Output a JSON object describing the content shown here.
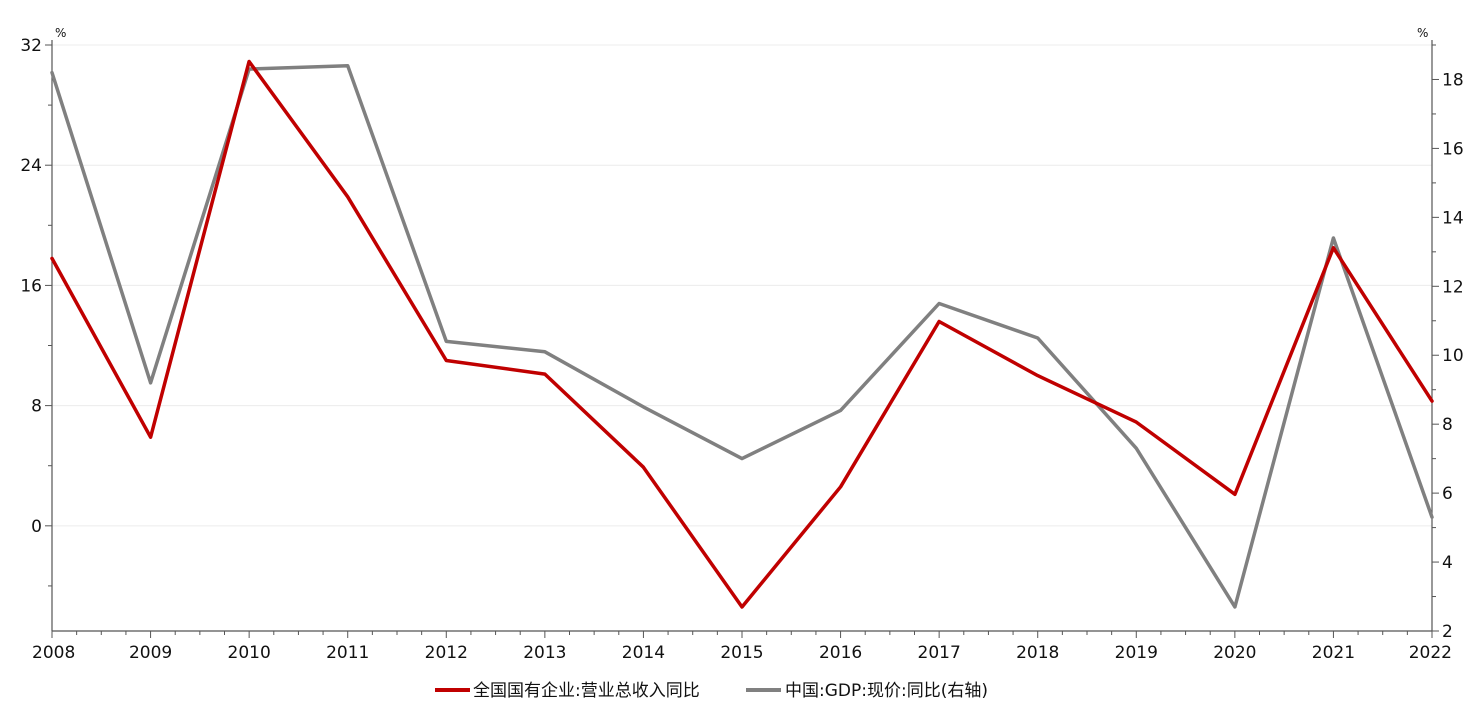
{
  "chart_data": {
    "type": "line",
    "x": [
      "2008",
      "2009",
      "2010",
      "2011",
      "2012",
      "2013",
      "2014",
      "2015",
      "2016",
      "2017",
      "2018",
      "2019",
      "2020",
      "2021",
      "2022"
    ],
    "y_left": {
      "unit": "%",
      "ylim": [
        -7,
        32
      ],
      "ticks": [
        0,
        8,
        16,
        24,
        32
      ]
    },
    "y_right": {
      "unit": "%",
      "ylim": [
        2,
        19
      ],
      "ticks": [
        2,
        4,
        6,
        8,
        10,
        12,
        14,
        16,
        18
      ]
    },
    "series": [
      {
        "name": "全国国有企业:营业总收入同比",
        "axis": "left",
        "color": "#c00000",
        "values": [
          17.8,
          5.9,
          30.9,
          21.9,
          11.0,
          10.1,
          3.9,
          -5.4,
          2.6,
          13.6,
          10.0,
          6.9,
          2.1,
          18.5,
          8.3
        ]
      },
      {
        "name": "中国:GDP:现价:同比(右轴)",
        "axis": "right",
        "color": "#808080",
        "values": [
          18.2,
          9.2,
          18.3,
          18.4,
          10.4,
          10.1,
          8.5,
          7.0,
          8.4,
          11.5,
          10.5,
          7.3,
          2.7,
          13.4,
          5.3
        ]
      }
    ],
    "grid": true,
    "legend": "bottom-center"
  }
}
